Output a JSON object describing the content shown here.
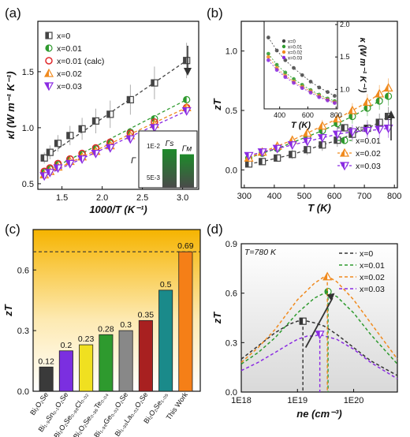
{
  "panel_labels": {
    "a": "(a)",
    "b": "(b)",
    "c": "(c)",
    "d": "(d)"
  },
  "chart_data": [
    {
      "panel": "(a)",
      "type": "scatter",
      "xlabel": "1000/T (K⁻¹)",
      "ylabel": "κl (W m⁻¹ K⁻¹)",
      "xlim": [
        1.2,
        3.2
      ],
      "ylim": [
        0.45,
        1.95
      ],
      "xticks": [
        "1.5",
        "2.0",
        "2.5",
        "3.0"
      ],
      "yticks": [
        "0.5",
        "1.0",
        "1.5"
      ],
      "legend_position": "top-left",
      "colors": {
        "x=0": "#444444",
        "x=0.01": "#2e9a2e",
        "x=0.01 (calc)": "#e0292c",
        "x=0.02": "#f08a1e",
        "x=0.03": "#8a2be2"
      },
      "series": [
        {
          "name": "x=0",
          "x": [
            1.28,
            1.35,
            1.45,
            1.6,
            1.75,
            1.92,
            2.1,
            2.35,
            2.65,
            3.05
          ],
          "y": [
            0.73,
            0.78,
            0.86,
            0.93,
            0.99,
            1.06,
            1.12,
            1.25,
            1.4,
            1.6
          ]
        },
        {
          "name": "x=0.01",
          "x": [
            1.28,
            1.35,
            1.45,
            1.6,
            1.75,
            1.92,
            2.1,
            2.35,
            2.65,
            3.05
          ],
          "y": [
            0.6,
            0.63,
            0.67,
            0.72,
            0.76,
            0.81,
            0.86,
            0.96,
            1.08,
            1.25
          ]
        },
        {
          "name": "x=0.01 (calc)",
          "x": [
            1.28,
            1.35,
            1.45,
            1.6,
            1.75,
            1.92,
            2.1,
            2.35,
            2.65,
            3.05
          ],
          "y": [
            0.61,
            0.64,
            0.68,
            0.72,
            0.77,
            0.82,
            0.87,
            0.95,
            1.05,
            1.18
          ]
        },
        {
          "name": "x=0.02",
          "x": [
            1.28,
            1.35,
            1.45,
            1.6,
            1.75,
            1.92,
            2.1,
            2.35,
            2.65,
            3.05
          ],
          "y": [
            0.58,
            0.61,
            0.65,
            0.7,
            0.74,
            0.79,
            0.84,
            0.93,
            1.03,
            1.18
          ]
        },
        {
          "name": "x=0.03",
          "x": [
            1.28,
            1.35,
            1.45,
            1.6,
            1.75,
            1.92,
            2.1,
            2.35,
            2.65,
            3.05
          ],
          "y": [
            0.57,
            0.6,
            0.64,
            0.68,
            0.72,
            0.77,
            0.82,
            0.9,
            1.0,
            1.15
          ]
        }
      ],
      "inset": {
        "type": "bar",
        "ylabel": "Γ",
        "yticks": [
          "1E-2",
          "5E-3"
        ],
        "categories": [
          "Γs",
          "Γм"
        ],
        "values": [
          0.0105,
          0.0095
        ]
      }
    },
    {
      "panel": "(b)",
      "type": "line",
      "xlabel": "T (K)",
      "ylabel": "zT",
      "xlim": [
        290,
        810
      ],
      "ylim": [
        -0.15,
        1.25
      ],
      "xticks": [
        "300",
        "400",
        "500",
        "600",
        "700",
        "800"
      ],
      "yticks": [
        "0.0",
        "0.5",
        "1.0"
      ],
      "legend_position": "bottom-right",
      "colors": {
        "x=0": "#444444",
        "x=0.01": "#2e9a2e",
        "x=0.02": "#f08a1e",
        "x=0.03": "#8a2be2"
      },
      "series": [
        {
          "name": "x=0",
          "x": [
            315,
            360,
            410,
            460,
            510,
            560,
            610,
            660,
            710,
            750,
            780
          ],
          "y": [
            0.05,
            0.07,
            0.1,
            0.13,
            0.17,
            0.21,
            0.25,
            0.3,
            0.35,
            0.4,
            0.45
          ]
        },
        {
          "name": "x=0.01",
          "x": [
            315,
            360,
            410,
            460,
            510,
            560,
            610,
            660,
            710,
            750,
            780
          ],
          "y": [
            0.1,
            0.14,
            0.18,
            0.23,
            0.28,
            0.33,
            0.39,
            0.45,
            0.52,
            0.58,
            0.62
          ]
        },
        {
          "name": "x=0.02",
          "x": [
            315,
            360,
            410,
            460,
            510,
            560,
            610,
            660,
            710,
            750,
            780
          ],
          "y": [
            0.1,
            0.15,
            0.2,
            0.25,
            0.31,
            0.37,
            0.43,
            0.5,
            0.57,
            0.64,
            0.69
          ]
        },
        {
          "name": "x=0.03",
          "x": [
            315,
            360,
            410,
            460,
            510,
            560,
            610,
            660,
            710,
            750,
            780
          ],
          "y": [
            0.12,
            0.15,
            0.18,
            0.21,
            0.24,
            0.27,
            0.3,
            0.32,
            0.33,
            0.34,
            0.35
          ]
        }
      ],
      "inset": {
        "type": "line",
        "xlabel": "T (K)",
        "ylabel": "κ (W m⁻¹ K⁻¹)",
        "xticks": [
          "400",
          "600",
          "800"
        ],
        "yticks": [
          "1.0",
          "1.5",
          "2.0"
        ],
        "legend_position": "top-left",
        "series": [
          {
            "name": "x=0",
            "x": [
              320,
              380,
              440,
              500,
              560,
              620,
              680,
              740,
              790
            ],
            "y": [
              1.8,
              1.6,
              1.45,
              1.33,
              1.22,
              1.12,
              1.03,
              0.96,
              0.9
            ]
          },
          {
            "name": "x=0.01",
            "x": [
              320,
              380,
              440,
              500,
              560,
              620,
              680,
              740,
              790
            ],
            "y": [
              1.55,
              1.38,
              1.26,
              1.16,
              1.07,
              0.99,
              0.92,
              0.86,
              0.82
            ]
          },
          {
            "name": "x=0.02",
            "x": [
              320,
              380,
              440,
              500,
              560,
              620,
              680,
              740,
              790
            ],
            "y": [
              1.5,
              1.33,
              1.21,
              1.12,
              1.04,
              0.97,
              0.9,
              0.84,
              0.8
            ]
          },
          {
            "name": "x=0.03",
            "x": [
              320,
              380,
              440,
              500,
              560,
              620,
              680,
              740,
              790
            ],
            "y": [
              1.45,
              1.3,
              1.19,
              1.1,
              1.02,
              0.95,
              0.88,
              0.83,
              0.79
            ]
          }
        ]
      }
    },
    {
      "panel": "(c)",
      "type": "bar",
      "ylabel": "zT",
      "ylim": [
        0.0,
        0.8
      ],
      "yticks": [
        "0.0",
        "0.3",
        "0.6"
      ],
      "grid": false,
      "reference_line": 0.69,
      "categories": [
        "Bi₂O₂Se",
        "Bi₁.₉Sn₀.₁O₂Se",
        "Bi₂O₂Se₀.₉₈Cl₀.₀₂",
        "Bi₂O₂Se₀.₉₆Te₀.₀₄",
        "Bi₁.₉₈Ge₀.₀₂O₂Se",
        "Bi₁.₉₈La₀.₀₂O₂Se",
        "Bi₂O₂Se₁.₀₅",
        "This Work"
      ],
      "values": [
        0.12,
        0.2,
        0.23,
        0.28,
        0.3,
        0.35,
        0.5,
        0.69
      ],
      "value_labels": [
        "0.12",
        "0.2",
        "0.23",
        "0.28",
        "0.3",
        "0.35",
        "0.5",
        "0.69"
      ],
      "colors": [
        "#3a3a3a",
        "#7b2fe0",
        "#f0e020",
        "#2e9a2e",
        "#888888",
        "#a82020",
        "#1a8a8a",
        "#f57f17"
      ]
    },
    {
      "panel": "(d)",
      "type": "line",
      "xlabel": "ne (cm⁻³)",
      "ylabel": "zT",
      "xscale": "log",
      "xlim": [
        1e+18,
        6e+20
      ],
      "ylim": [
        0.0,
        0.9
      ],
      "xticks": [
        "1E18",
        "1E19",
        "1E20"
      ],
      "yticks": [
        "0.0",
        "0.3",
        "0.6",
        "0.9"
      ],
      "annotation": "T=780 K",
      "legend_position": "top-right",
      "colors": {
        "x=0": "#333333",
        "x=0.01": "#2e9a2e",
        "x=0.02": "#f08a1e",
        "x=0.03": "#8a2be2"
      },
      "series": [
        {
          "name": "x=0",
          "x": [
            1e+18,
            2e+18,
            4e+18,
            7e+18,
            1e+19,
            1.5e+19,
            2e+19,
            3e+19,
            5e+19,
            1e+20,
            2e+20,
            6e+20
          ],
          "y": [
            0.2,
            0.28,
            0.36,
            0.41,
            0.43,
            0.43,
            0.42,
            0.4,
            0.35,
            0.27,
            0.19,
            0.1
          ]
        },
        {
          "name": "x=0.01",
          "x": [
            1e+18,
            2e+18,
            4e+18,
            7e+18,
            1e+19,
            2e+19,
            3e+19,
            3.5e+19,
            5e+19,
            1e+20,
            2e+20,
            6e+20
          ],
          "y": [
            0.17,
            0.24,
            0.33,
            0.42,
            0.48,
            0.57,
            0.6,
            0.6,
            0.58,
            0.48,
            0.35,
            0.17
          ]
        },
        {
          "name": "x=0.02",
          "x": [
            1e+18,
            2e+18,
            4e+18,
            7e+18,
            1e+19,
            2e+19,
            3e+19,
            3.5e+19,
            5e+19,
            1e+20,
            2e+20,
            6e+20
          ],
          "y": [
            0.18,
            0.27,
            0.38,
            0.49,
            0.56,
            0.66,
            0.7,
            0.7,
            0.67,
            0.56,
            0.42,
            0.2
          ]
        },
        {
          "name": "x=0.03",
          "x": [
            1e+18,
            2e+18,
            4e+18,
            7e+18,
            1e+19,
            1.5e+19,
            2e+19,
            2.5e+19,
            3e+19,
            5e+19,
            1e+20,
            2e+20,
            6e+20
          ],
          "y": [
            0.13,
            0.18,
            0.24,
            0.29,
            0.32,
            0.34,
            0.34,
            0.35,
            0.34,
            0.32,
            0.26,
            0.18,
            0.08
          ]
        }
      ],
      "markers": [
        {
          "series": "x=0",
          "x": 1.25e+19,
          "y": 0.43
        },
        {
          "series": "x=0.01",
          "x": 3.5e+19,
          "y": 0.61
        },
        {
          "series": "x=0.02",
          "x": 3.4e+19,
          "y": 0.7
        },
        {
          "series": "x=0.03",
          "x": 2.5e+19,
          "y": 0.35
        }
      ]
    }
  ]
}
